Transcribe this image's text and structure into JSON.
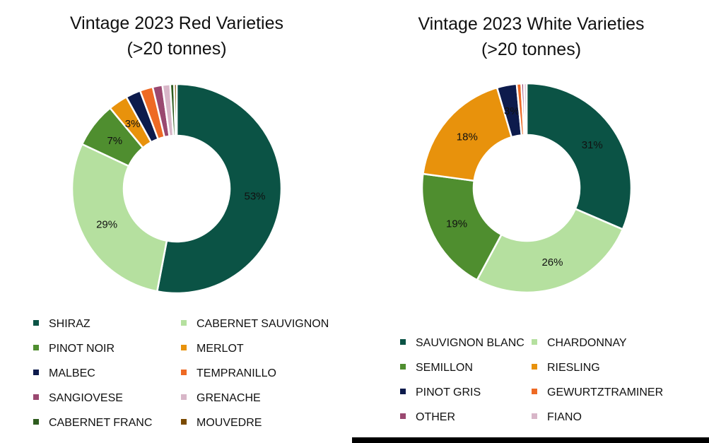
{
  "chart_data": [
    {
      "type": "pie",
      "variant": "donut",
      "title": "Vintage 2023 Red Varieties",
      "subtitle": "(>20 tonnes)",
      "legend_position": "bottom",
      "slices": [
        {
          "name": "SHIRAZ",
          "value": 53,
          "label": "53%",
          "color": "#0B5345"
        },
        {
          "name": "CABERNET SAUVIGNON",
          "value": 29,
          "label": "29%",
          "color": "#B5E09F"
        },
        {
          "name": "PINOT NOIR",
          "value": 7,
          "label": "7%",
          "color": "#4F8E2F"
        },
        {
          "name": "MERLOT",
          "value": 3,
          "label": "3%",
          "color": "#E8920C"
        },
        {
          "name": "MALBEC",
          "value": 2.3,
          "label": "",
          "color": "#0D1B4C"
        },
        {
          "name": "TEMPRANILLO",
          "value": 2,
          "label": "",
          "color": "#EE6A24"
        },
        {
          "name": "SANGIOVESE",
          "value": 1.5,
          "label": "",
          "color": "#9A4870"
        },
        {
          "name": "GRENACHE",
          "value": 1.2,
          "label": "",
          "color": "#D8B6C8"
        },
        {
          "name": "CABERNET FRANC",
          "value": 0.6,
          "label": "",
          "color": "#2E5C1E"
        },
        {
          "name": "MOUVEDRE",
          "value": 0.4,
          "label": "",
          "color": "#7A4A00"
        }
      ]
    },
    {
      "type": "pie",
      "variant": "donut",
      "title": "Vintage 2023 White Varieties",
      "subtitle": "(>20 tonnes)",
      "legend_position": "bottom",
      "slices": [
        {
          "name": "SAUVIGNON BLANC",
          "value": 31,
          "label": "31%",
          "color": "#0B5345"
        },
        {
          "name": "CHARDONNAY",
          "value": 26,
          "label": "26%",
          "color": "#B5E09F"
        },
        {
          "name": "SEMILLON",
          "value": 19,
          "label": "19%",
          "color": "#4F8E2F"
        },
        {
          "name": "RIESLING",
          "value": 18,
          "label": "18%",
          "color": "#E8920C"
        },
        {
          "name": "PINOT GRIS",
          "value": 3,
          "label": "3%",
          "color": "#0D1B4C"
        },
        {
          "name": "GEWURTZTRAMINER",
          "value": 0.7,
          "label": "",
          "color": "#EE6A24"
        },
        {
          "name": "OTHER",
          "value": 0.4,
          "label": "",
          "color": "#9A4870"
        },
        {
          "name": "FIANO",
          "value": 0.4,
          "label": "",
          "color": "#D8B6C8"
        }
      ]
    }
  ]
}
